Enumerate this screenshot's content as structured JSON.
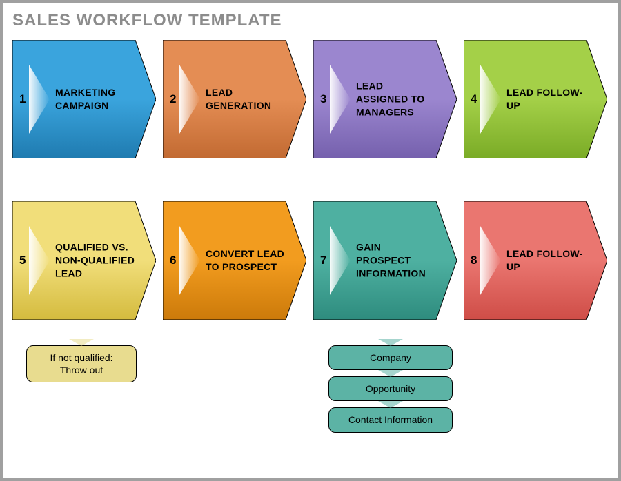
{
  "title": "SALES WORKFLOW TEMPLATE",
  "type": "flowchart",
  "layout": {
    "rows": 2,
    "cols": 4,
    "step_width": 208,
    "step_height": 172,
    "row_gap": 62
  },
  "background_color": "#ffffff",
  "border_color": "#a0a0a0",
  "steps": [
    {
      "n": "1",
      "label": "MARKETING CAMPAIGN",
      "fill": "#3aa4dd",
      "dark": "#1f7bb0"
    },
    {
      "n": "2",
      "label": "LEAD GENERATION",
      "fill": "#e48d54",
      "dark": "#c26a32"
    },
    {
      "n": "3",
      "label": "LEAD ASSIGNED TO MANAGERS",
      "fill": "#9b86cf",
      "dark": "#7560ad"
    },
    {
      "n": "4",
      "label": "LEAD FOLLOW-UP",
      "fill": "#a4d048",
      "dark": "#7aab26"
    },
    {
      "n": "5",
      "label": "QUALIFIED VS. NON-QUALIFIED LEAD",
      "fill": "#f1de7a",
      "dark": "#d4bb3e"
    },
    {
      "n": "6",
      "label": "CONVERT LEAD TO PROSPECT",
      "fill": "#f29c1f",
      "dark": "#cc7a0a"
    },
    {
      "n": "7",
      "label": "GAIN PROSPECT INFORMATION",
      "fill": "#4eb0a1",
      "dark": "#2e8c7e"
    },
    {
      "n": "8",
      "label": "LEAD FOLLOW-UP",
      "fill": "#ea7670",
      "dark": "#cf4d47"
    }
  ],
  "substeps": {
    "step5": {
      "color": "#e8dc8f",
      "items": [
        "If not qualified:\nThrow out"
      ]
    },
    "step7": {
      "color": "#5cb3a5",
      "items": [
        "Company",
        "Opportunity",
        "Contact Information"
      ]
    }
  },
  "typography": {
    "title_fontsize": 24,
    "title_color": "#8c8c8c",
    "step_number_fontsize": 17,
    "step_label_fontsize": 14,
    "sub_fontsize": 14
  }
}
